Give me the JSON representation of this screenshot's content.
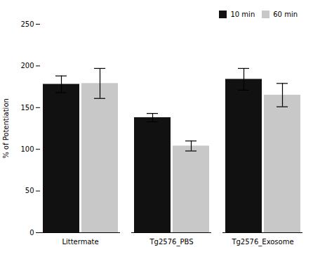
{
  "chart_data": {
    "type": "bar",
    "categories": [
      "Littermate",
      "Tg2576_PBS",
      "Tg2576_Exosome"
    ],
    "series": [
      {
        "name": "10 min",
        "color": "#111111",
        "values": [
          178,
          138,
          184
        ],
        "errors": [
          10,
          5,
          13
        ]
      },
      {
        "name": "60 min",
        "color": "#c8c8c8",
        "values": [
          179,
          104,
          165
        ],
        "errors": [
          18,
          6,
          14
        ]
      }
    ],
    "ylabel": "% of Potentiation",
    "ylim": [
      0,
      250
    ],
    "yticks": [
      0,
      50,
      100,
      150,
      200,
      250
    ],
    "legend": "upper right"
  }
}
